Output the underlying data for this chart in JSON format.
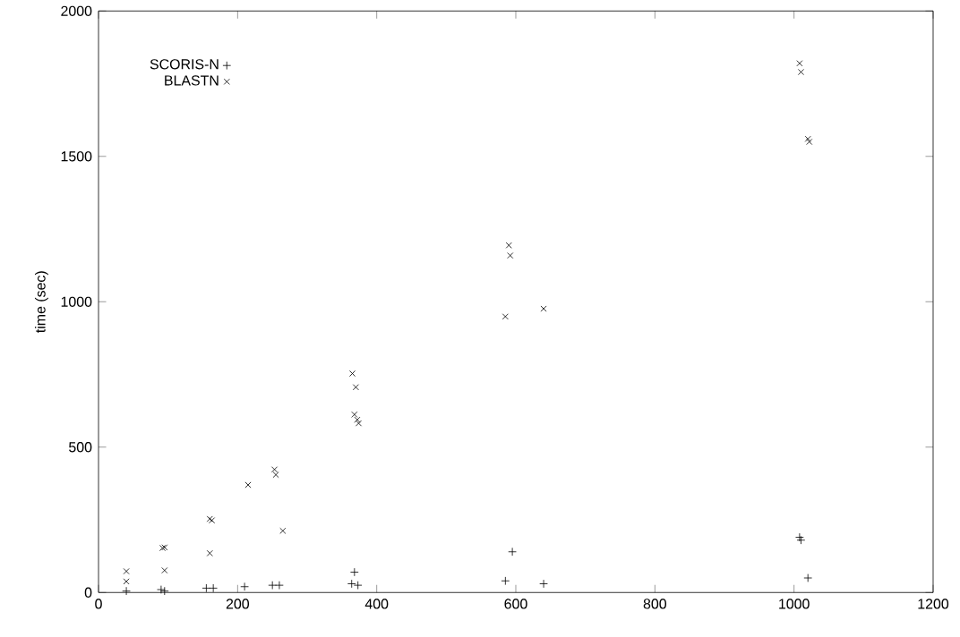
{
  "chart_data": {
    "type": "scatter",
    "ylabel": "time (sec)",
    "xlim": [
      0,
      1200
    ],
    "xticks": [
      0,
      200,
      400,
      600,
      800,
      1000,
      1200
    ],
    "ylim": [
      0,
      2000
    ],
    "yticks": [
      0,
      500,
      1000,
      1500,
      2000
    ],
    "legend": "top left",
    "grid": false,
    "series": [
      {
        "name": "SCORIS-N",
        "color": "#000000",
        "marker": "plus",
        "x": [
          40,
          90,
          95,
          155,
          165,
          210,
          250,
          260,
          364,
          373,
          368,
          585,
          595,
          640,
          1008,
          1010,
          1020
        ],
        "values": [
          5,
          10,
          5,
          15,
          15,
          20,
          25,
          25,
          30,
          25,
          70,
          40,
          140,
          30,
          190,
          180,
          50
        ]
      },
      {
        "name": "BLASTN",
        "color": "#000000",
        "marker": "cross",
        "x": [
          40,
          40,
          92,
          95,
          95,
          160,
          163,
          160,
          215,
          253,
          255,
          265,
          365,
          370,
          368,
          372,
          374,
          590,
          592,
          585,
          640,
          1008,
          1010,
          1020,
          1022
        ],
        "values": [
          73,
          38,
          153,
          155,
          76,
          253,
          248,
          135,
          370,
          423,
          405,
          212,
          753,
          706,
          612,
          594,
          582,
          1194,
          1159,
          949,
          976,
          1820,
          1790,
          1560,
          1550
        ]
      }
    ]
  }
}
